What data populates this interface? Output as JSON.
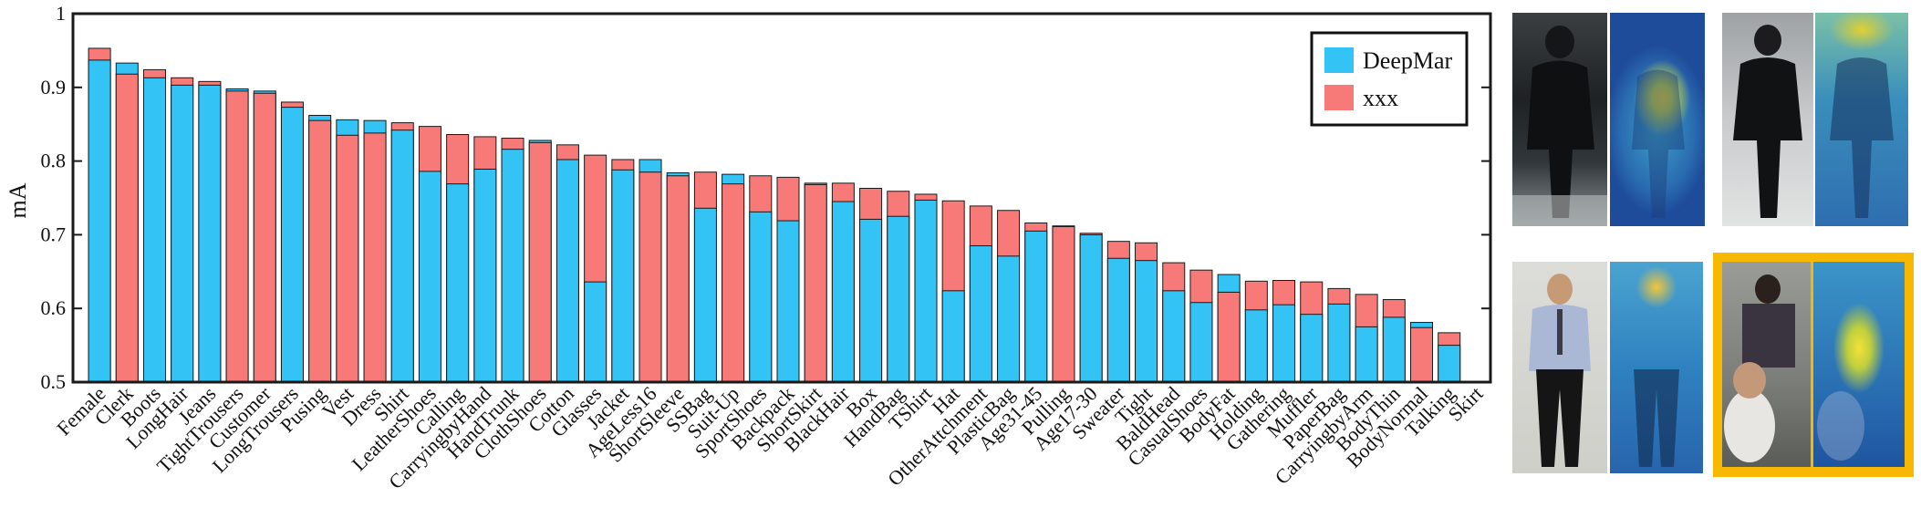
{
  "chart_data": {
    "type": "bar",
    "ylabel": "mA",
    "ylim": [
      0.5,
      1.0
    ],
    "yticks": [
      "0.5",
      "0.6",
      "0.7",
      "0.8",
      "0.9",
      "1"
    ],
    "grid": false,
    "legend_position": "top-right",
    "categories": [
      "Female",
      "Clerk",
      "Boots",
      "LongHair",
      "Jeans",
      "TightTrousers",
      "Customer",
      "LongTrousers",
      "Pusing",
      "Vest",
      "Dress",
      "Shirt",
      "LeatherShoes",
      "Calling",
      "CarryingbyHand",
      "HandTrunk",
      "ClothShoes",
      "Cotton",
      "Glasses",
      "Jacket",
      "AgeLess16",
      "ShortSleeve",
      "SSBag",
      "Suit-Up",
      "SportShoes",
      "Backpack",
      "ShortSkirt",
      "BlackHair",
      "Box",
      "HandBag",
      "TShirt",
      "Hat",
      "OtherAttchment",
      "PlasticBag",
      "Age31-45",
      "Pulling",
      "Age17-30",
      "Sweater",
      "Tight",
      "BaldHead",
      "CasualShoes",
      "BodyFat",
      "Holding",
      "Gathering",
      "Muffler",
      "PaperBag",
      "CarryingbyArm",
      "BodyThin",
      "BodyNormal",
      "Talking",
      "Skirt"
    ],
    "series": [
      {
        "name": "DeepMar",
        "color": "#33c3f5",
        "values": [
          0.937,
          0.933,
          0.913,
          0.903,
          0.903,
          0.898,
          0.895,
          0.873,
          0.862,
          0.856,
          0.855,
          0.842,
          0.786,
          0.769,
          0.789,
          0.816,
          0.828,
          0.802,
          0.636,
          0.788,
          0.802,
          0.784,
          0.736,
          0.782,
          0.731,
          0.719,
          0.77,
          0.745,
          0.721,
          0.725,
          0.747,
          0.624,
          0.685,
          0.671,
          0.705,
          0.712,
          0.7,
          0.668,
          0.665,
          0.624,
          0.608,
          0.646,
          0.598,
          0.605,
          0.592,
          0.606,
          0.575,
          0.588,
          0.581,
          0.55,
          0.5
        ]
      },
      {
        "name": "xxx",
        "color": "#f87a78",
        "values": [
          0.953,
          0.918,
          0.924,
          0.913,
          0.908,
          0.895,
          0.892,
          0.88,
          0.855,
          0.835,
          0.838,
          0.852,
          0.847,
          0.836,
          0.833,
          0.831,
          0.825,
          0.822,
          0.808,
          0.802,
          0.785,
          0.78,
          0.785,
          0.769,
          0.78,
          0.778,
          0.768,
          0.77,
          0.763,
          0.759,
          0.755,
          0.746,
          0.739,
          0.733,
          0.716,
          0.711,
          0.702,
          0.691,
          0.689,
          0.662,
          0.652,
          0.622,
          0.637,
          0.638,
          0.636,
          0.627,
          0.619,
          0.612,
          0.574,
          0.567,
          0.5
        ]
      }
    ]
  },
  "colors": {
    "deepmar": "#33c3f5",
    "xxx": "#f87a78",
    "highlight_frame": "#f9b800",
    "axis": "#1a1a1a"
  }
}
